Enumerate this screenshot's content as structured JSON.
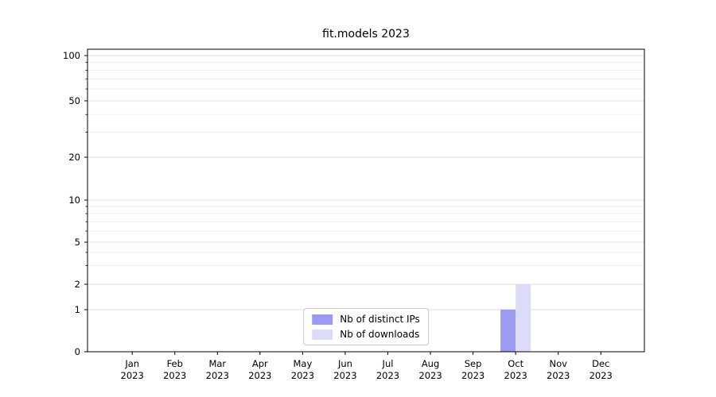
{
  "chart_data": {
    "type": "bar",
    "title": "fit.models 2023",
    "categories": [
      "Jan",
      "Feb",
      "Mar",
      "Apr",
      "May",
      "Jun",
      "Jul",
      "Aug",
      "Sep",
      "Oct",
      "Nov",
      "Dec"
    ],
    "year_label": "2023",
    "series": [
      {
        "name": "Nb of distinct IPs",
        "color": "#9b9af0",
        "values": [
          0,
          0,
          0,
          0,
          0,
          0,
          0,
          0,
          0,
          1,
          0,
          0
        ]
      },
      {
        "name": "Nb of downloads",
        "color": "#dcdcf8",
        "values": [
          0,
          0,
          0,
          0,
          0,
          0,
          0,
          0,
          0,
          2,
          0,
          0
        ]
      }
    ],
    "yscale": "symlog",
    "yticks": [
      0,
      1,
      2,
      5,
      10,
      20,
      50,
      100
    ],
    "yminorticks": [
      3,
      4,
      6,
      7,
      8,
      9,
      30,
      40,
      60,
      70,
      80,
      90
    ],
    "ylim": [
      0,
      112
    ],
    "xlabel": "",
    "ylabel": "",
    "grid": true,
    "legend_position": "lower center",
    "axis_color": "#000000",
    "grid_major_color": "#e2e2e2",
    "grid_minor_color": "#efefef"
  }
}
